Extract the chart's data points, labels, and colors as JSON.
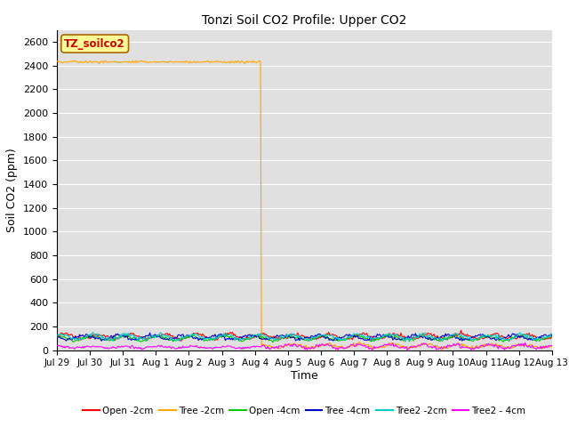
{
  "title": "Tonzi Soil CO2 Profile: Upper CO2",
  "ylabel": "Soil CO2 (ppm)",
  "xlabel": "Time",
  "ylim": [
    0,
    2700
  ],
  "yticks": [
    0,
    200,
    400,
    600,
    800,
    1000,
    1200,
    1400,
    1600,
    1800,
    2000,
    2200,
    2400,
    2600
  ],
  "background_color": "#e0e0e0",
  "legend_label": "TZ_soilco2",
  "series_names": [
    "Open -2cm",
    "Tree -2cm",
    "Open -4cm",
    "Tree -4cm",
    "Tree2 -2cm",
    "Tree2 - 4cm"
  ],
  "series_colors": [
    "#ff0000",
    "#ffa500",
    "#00cc00",
    "#0000cc",
    "#00cccc",
    "#ff00ff"
  ],
  "legend_names": [
    "Open -2cm",
    "Tree -2cm",
    "Open -4cm",
    "Tree -4cm",
    "Tree2 -2cm",
    "Tree2 - 4cm"
  ],
  "x_tick_labels": [
    "Jul 29",
    "Jul 30",
    "Jul 31",
    "Aug 1",
    "Aug 2",
    "Aug 3",
    "Aug 4",
    "Aug 5",
    "Aug 6",
    "Aug 7",
    "Aug 8",
    "Aug 9",
    "Aug 10",
    "Aug 11",
    "Aug 12",
    "Aug 13"
  ],
  "n_points": 480,
  "days": 15,
  "drop_day": 6.2
}
